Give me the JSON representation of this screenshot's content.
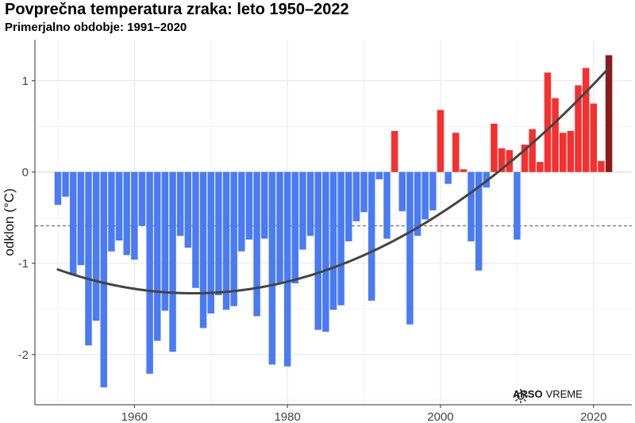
{
  "title": "Povprečna temperatura zraka: leto 1950–2022",
  "subtitle": "Primerjalno obdobje: 1991–2020",
  "logo": {
    "brand": "ARSO",
    "product": "VREME",
    "icon": "sun-icon"
  },
  "colors": {
    "negative": "#4a7bf2",
    "positive": "#f62f2f",
    "last": "#8b1a1a",
    "trend": "#444444",
    "reference": "#555555"
  },
  "chart_data": {
    "type": "bar",
    "ylabel": "odklon (°C)",
    "xlim": [
      1947,
      2025
    ],
    "ylim": [
      -2.55,
      1.45
    ],
    "xticks": [
      1960,
      1980,
      2000,
      2020
    ],
    "yticks": [
      -2,
      -1,
      0,
      1
    ],
    "grid": true,
    "reference_line": -0.59,
    "trend": "quadratic",
    "x": [
      1950,
      1951,
      1952,
      1953,
      1954,
      1955,
      1956,
      1957,
      1958,
      1959,
      1960,
      1961,
      1962,
      1963,
      1964,
      1965,
      1966,
      1967,
      1968,
      1969,
      1970,
      1971,
      1972,
      1973,
      1974,
      1975,
      1976,
      1977,
      1978,
      1979,
      1980,
      1981,
      1982,
      1983,
      1984,
      1985,
      1986,
      1987,
      1988,
      1989,
      1990,
      1991,
      1992,
      1993,
      1994,
      1995,
      1996,
      1997,
      1998,
      1999,
      2000,
      2001,
      2002,
      2003,
      2004,
      2005,
      2006,
      2007,
      2008,
      2009,
      2010,
      2011,
      2012,
      2013,
      2014,
      2015,
      2016,
      2017,
      2018,
      2019,
      2020,
      2021,
      2022
    ],
    "values": [
      -0.36,
      -0.27,
      -1.13,
      -1.02,
      -1.9,
      -1.63,
      -2.36,
      -0.87,
      -0.75,
      -0.91,
      -0.96,
      -0.59,
      -2.21,
      -1.85,
      -1.52,
      -1.97,
      -0.7,
      -0.83,
      -1.27,
      -1.71,
      -1.55,
      -1.35,
      -1.51,
      -1.47,
      -0.87,
      -0.74,
      -1.58,
      -0.73,
      -2.11,
      -1.21,
      -2.13,
      -1.22,
      -0.85,
      -0.7,
      -1.73,
      -1.75,
      -1.51,
      -1.46,
      -0.76,
      -0.54,
      -0.44,
      -1.41,
      -0.08,
      -0.73,
      0.45,
      -0.43,
      -1.67,
      -0.7,
      -0.52,
      -0.42,
      0.68,
      -0.13,
      0.43,
      0.03,
      -0.76,
      -1.08,
      -0.17,
      0.53,
      0.26,
      0.24,
      -0.74,
      0.3,
      0.47,
      0.11,
      1.09,
      0.81,
      0.43,
      0.45,
      0.95,
      1.14,
      0.75,
      0.12,
      1.28
    ]
  }
}
